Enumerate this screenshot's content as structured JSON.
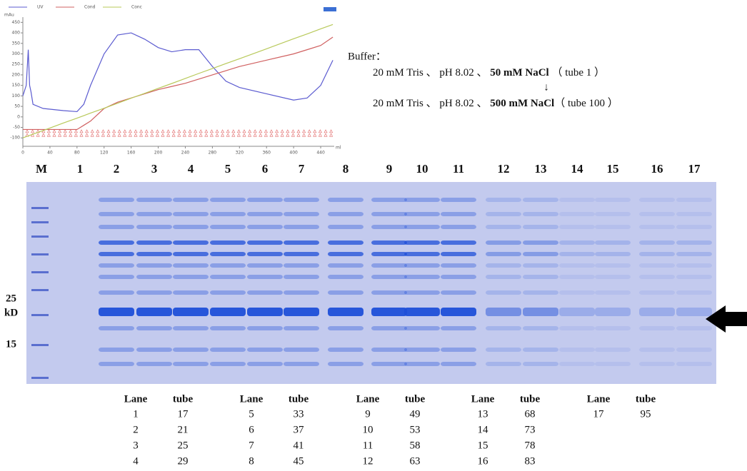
{
  "chart_data": {
    "type": "line",
    "y_label": "mAu",
    "x_label": "ml",
    "x": [
      0,
      5,
      8,
      10,
      12,
      15,
      30,
      60,
      80,
      90,
      100,
      120,
      140,
      160,
      180,
      200,
      220,
      240,
      260,
      280,
      300,
      320,
      360,
      400,
      420,
      440,
      458
    ],
    "series": [
      {
        "name": "UV",
        "color": "#5b5bd0",
        "values": [
          100,
          150,
          320,
          150,
          120,
          60,
          40,
          30,
          25,
          60,
          150,
          300,
          390,
          400,
          370,
          330,
          310,
          320,
          320,
          240,
          170,
          140,
          110,
          80,
          90,
          150,
          270
        ]
      },
      {
        "name": "Cond",
        "color": "#d06060",
        "values": [
          -60,
          -60,
          -60,
          -60,
          -60,
          -60,
          -60,
          -60,
          -60,
          -40,
          -20,
          40,
          70,
          90,
          110,
          130,
          145,
          160,
          180,
          200,
          220,
          240,
          270,
          300,
          320,
          340,
          380
        ]
      },
      {
        "name": "Conc",
        "color": "#b8c95a",
        "values": [
          -100,
          -94,
          -91,
          -88,
          -86,
          -82,
          -65,
          -29,
          -6,
          6,
          18,
          41,
          65,
          89,
          112,
          136,
          159,
          183,
          207,
          230,
          254,
          277,
          324,
          372,
          395,
          419,
          440
        ]
      }
    ],
    "xlim": [
      0,
      460
    ],
    "ylim": [
      -140,
      475
    ],
    "xticks": [
      0,
      40,
      80,
      120,
      160,
      200,
      240,
      280,
      320,
      360,
      400,
      440
    ],
    "yticks": [
      -100,
      -50,
      0,
      50,
      100,
      150,
      200,
      250,
      300,
      350,
      400,
      450
    ]
  },
  "buffer": {
    "title": "Buffer：",
    "start": {
      "text": "20 mM Tris 、 pH 8.02 、 ",
      "bold": "50 mM NaCl",
      "tail": " （ tube 1 ）"
    },
    "arrow": "↓",
    "end": {
      "text": "20 mM Tris 、 pH 8.02 、 ",
      "bold": "500 mM NaCl",
      "tail": "（ tube 100 ）"
    }
  },
  "gel": {
    "lanes": [
      "M",
      "1",
      "2",
      "3",
      "4",
      "5",
      "6",
      "7",
      "8",
      "9",
      "10",
      "11",
      "12",
      "13",
      "14",
      "15",
      "16",
      "17"
    ],
    "marker_25": "25",
    "marker_unit": "kD",
    "marker_15": "15"
  },
  "table": {
    "groups": [
      {
        "header": [
          "Lane",
          "tube"
        ],
        "rows": [
          [
            "1",
            "17"
          ],
          [
            "2",
            "21"
          ],
          [
            "3",
            "25"
          ],
          [
            "4",
            "29"
          ]
        ]
      },
      {
        "header": [
          "Lane",
          "tube"
        ],
        "rows": [
          [
            "5",
            "33"
          ],
          [
            "6",
            "37"
          ],
          [
            "7",
            "41"
          ],
          [
            "8",
            "45"
          ]
        ]
      },
      {
        "header": [
          "Lane",
          "tube"
        ],
        "rows": [
          [
            "9",
            "49"
          ],
          [
            "10",
            "53"
          ],
          [
            "11",
            "58"
          ],
          [
            "12",
            "63"
          ]
        ]
      },
      {
        "header": [
          "Lane",
          "tube"
        ],
        "rows": [
          [
            "13",
            "68"
          ],
          [
            "14",
            "73"
          ],
          [
            "15",
            "78"
          ],
          [
            "16",
            "83"
          ]
        ]
      },
      {
        "header": [
          "Lane",
          "tube"
        ],
        "rows": [
          [
            "17",
            "95"
          ]
        ]
      }
    ]
  }
}
